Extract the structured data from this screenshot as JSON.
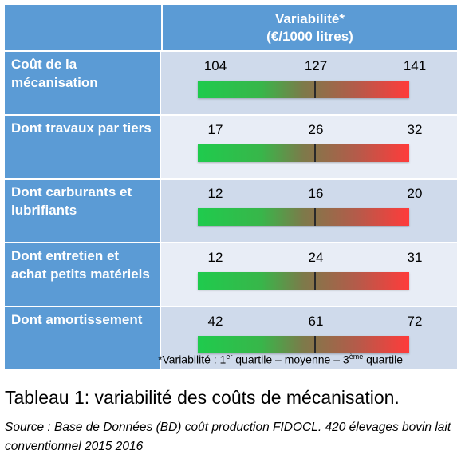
{
  "header": {
    "title_line1": "Variabilité*",
    "title_line2": "(€/1000 litres)"
  },
  "rows": [
    {
      "label": "Coût de la mécanisation",
      "q1": "104",
      "mean": "127",
      "q3": "141"
    },
    {
      "label": "Dont travaux par tiers",
      "q1": "17",
      "mean": "26",
      "q3": "32"
    },
    {
      "label": "Dont carburants et lubrifiants",
      "q1": "12",
      "mean": "16",
      "q3": "20"
    },
    {
      "label": "Dont entretien et achat petits matériels",
      "q1": "12",
      "mean": "24",
      "q3": "31"
    },
    {
      "label": "Dont amortissement",
      "q1": "42",
      "mean": "61",
      "q3": "72"
    }
  ],
  "footnote": {
    "prefix": "*Variabilité : 1",
    "sup1": "er",
    "middle": " quartile – moyenne – 3",
    "sup2": "ème",
    "suffix": " quartile"
  },
  "caption": "Tableau 1: variabilité des coûts de mécanisation.",
  "source": {
    "underlined": "Source ",
    "text": ": Base de Données (BD) coût production FIDOCL. 420 élevages bovin lait conventionnel 2015 2016"
  },
  "colors": {
    "header_blue": "#5b9bd5",
    "row_light": "#cfdaeb",
    "row_lighter": "#e8edf6",
    "gradient_start": "#1fcb4d",
    "gradient_end": "#ff3b3b"
  }
}
